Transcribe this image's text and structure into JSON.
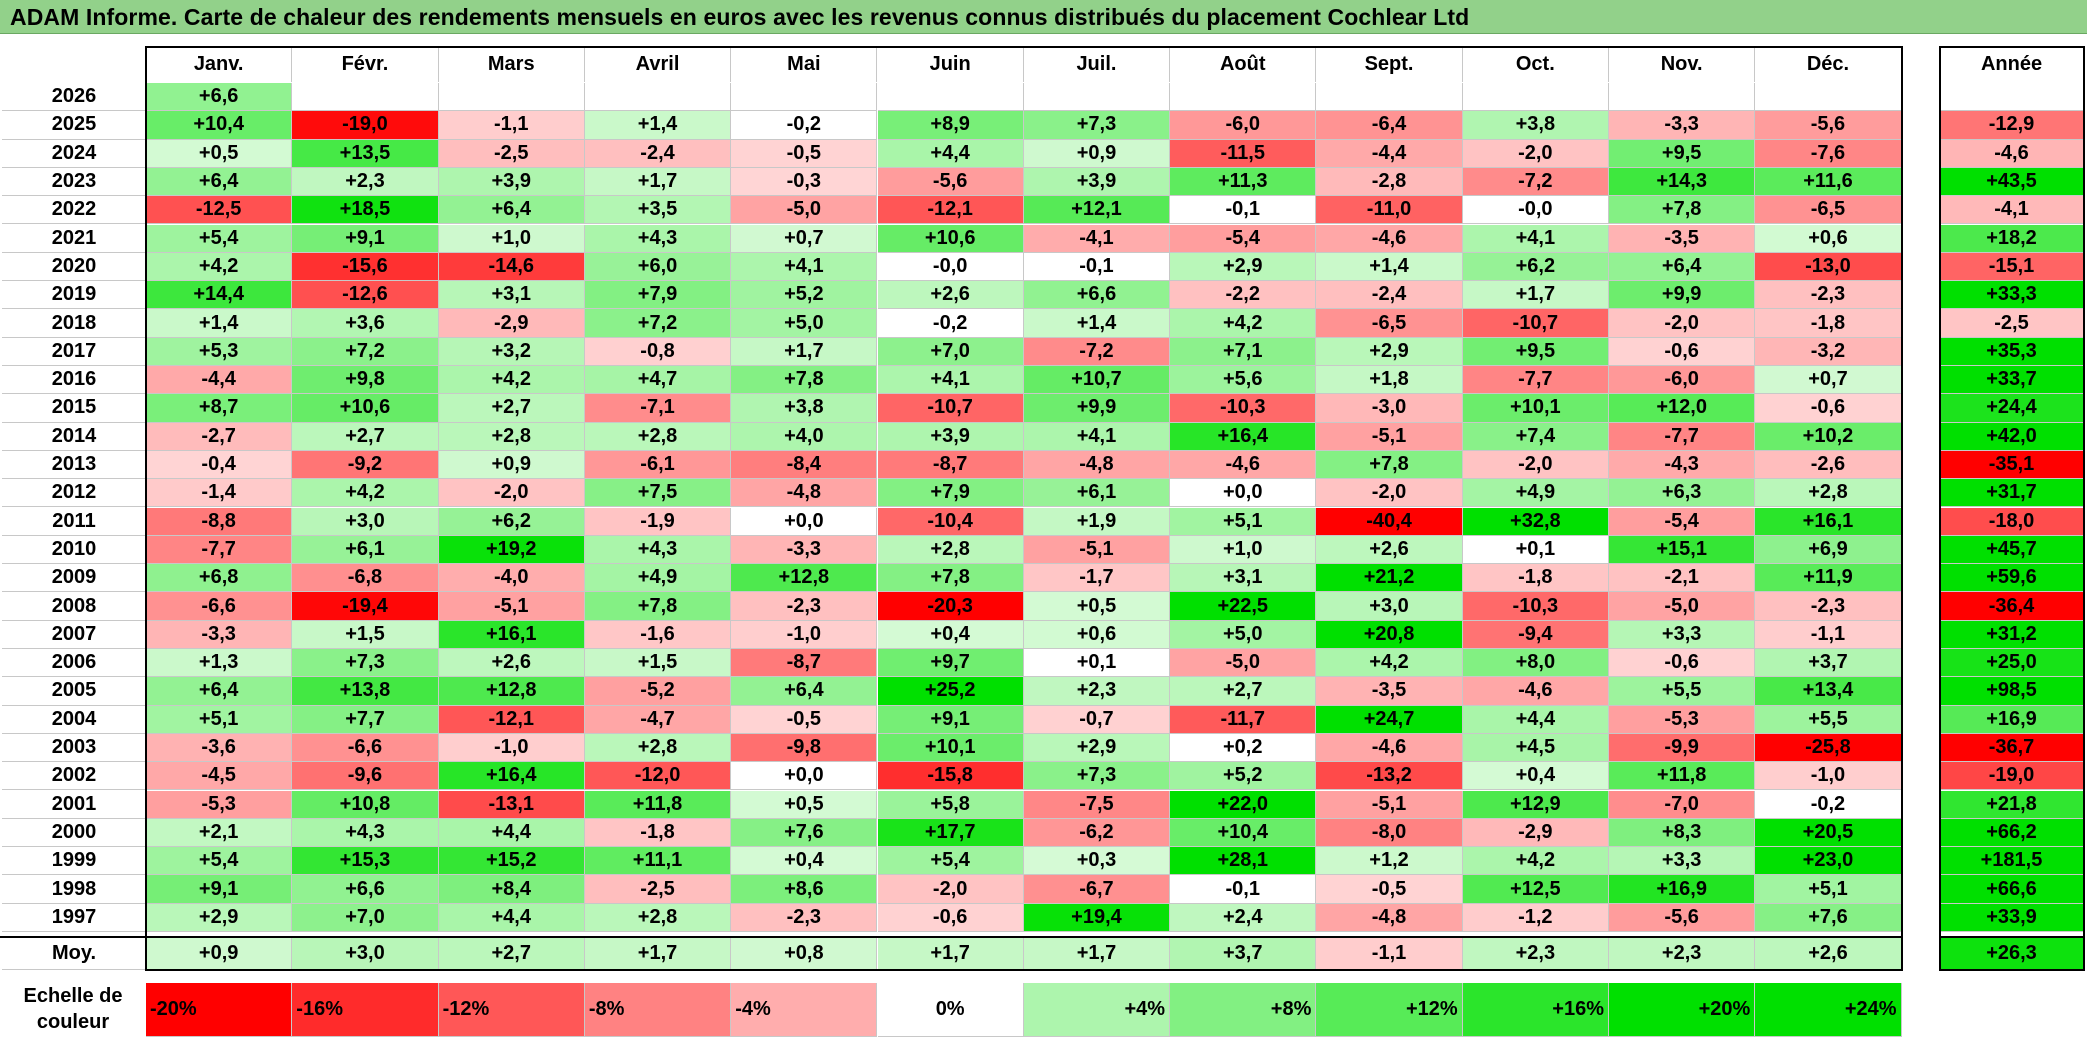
{
  "title": "ADAM Informe. Carte de chaleur des rendements mensuels en euros avec les revenus connus distribués du placement Cochlear Ltd",
  "chart_data": {
    "type": "heatmap",
    "months": [
      "Janv.",
      "Févr.",
      "Mars",
      "Avril",
      "Mai",
      "Juin",
      "Juil.",
      "Août",
      "Sept.",
      "Oct.",
      "Nov.",
      "Déc."
    ],
    "year_header": "Année",
    "rows": [
      {
        "year": "2026",
        "values": [
          "+6,6",
          "",
          "",
          "",
          "",
          "",
          "",
          "",
          "",
          "",
          "",
          ""
        ],
        "annual": ""
      },
      {
        "year": "2025",
        "values": [
          "+10,4",
          "-19,0",
          "-1,1",
          "+1,4",
          "-0,2",
          "+8,9",
          "+7,3",
          "-6,0",
          "-6,4",
          "+3,8",
          "-3,3",
          "-5,6"
        ],
        "annual": "-12,9"
      },
      {
        "year": "2024",
        "values": [
          "+0,5",
          "+13,5",
          "-2,5",
          "-2,4",
          "-0,5",
          "+4,4",
          "+0,9",
          "-11,5",
          "-4,4",
          "-2,0",
          "+9,5",
          "-7,6"
        ],
        "annual": "-4,6"
      },
      {
        "year": "2023",
        "values": [
          "+6,4",
          "+2,3",
          "+3,9",
          "+1,7",
          "-0,3",
          "-5,6",
          "+3,9",
          "+11,3",
          "-2,8",
          "-7,2",
          "+14,3",
          "+11,6"
        ],
        "annual": "+43,5"
      },
      {
        "year": "2022",
        "values": [
          "-12,5",
          "+18,5",
          "+6,4",
          "+3,5",
          "-5,0",
          "-12,1",
          "+12,1",
          "-0,1",
          "-11,0",
          "-0,0",
          "+7,8",
          "-6,5"
        ],
        "annual": "-4,1"
      },
      {
        "year": "2021",
        "values": [
          "+5,4",
          "+9,1",
          "+1,0",
          "+4,3",
          "+0,7",
          "+10,6",
          "-4,1",
          "-5,4",
          "-4,6",
          "+4,1",
          "-3,5",
          "+0,6"
        ],
        "annual": "+18,2"
      },
      {
        "year": "2020",
        "values": [
          "+4,2",
          "-15,6",
          "-14,6",
          "+6,0",
          "+4,1",
          "-0,0",
          "-0,1",
          "+2,9",
          "+1,4",
          "+6,2",
          "+6,4",
          "-13,0"
        ],
        "annual": "-15,1"
      },
      {
        "year": "2019",
        "values": [
          "+14,4",
          "-12,6",
          "+3,1",
          "+7,9",
          "+5,2",
          "+2,6",
          "+6,6",
          "-2,2",
          "-2,4",
          "+1,7",
          "+9,9",
          "-2,3"
        ],
        "annual": "+33,3"
      },
      {
        "year": "2018",
        "values": [
          "+1,4",
          "+3,6",
          "-2,9",
          "+7,2",
          "+5,0",
          "-0,2",
          "+1,4",
          "+4,2",
          "-6,5",
          "-10,7",
          "-2,0",
          "-1,8"
        ],
        "annual": "-2,5"
      },
      {
        "year": "2017",
        "values": [
          "+5,3",
          "+7,2",
          "+3,2",
          "-0,8",
          "+1,7",
          "+7,0",
          "-7,2",
          "+7,1",
          "+2,9",
          "+9,5",
          "-0,6",
          "-3,2"
        ],
        "annual": "+35,3"
      },
      {
        "year": "2016",
        "values": [
          "-4,4",
          "+9,8",
          "+4,2",
          "+4,7",
          "+7,8",
          "+4,1",
          "+10,7",
          "+5,6",
          "+1,8",
          "-7,7",
          "-6,0",
          "+0,7"
        ],
        "annual": "+33,7"
      },
      {
        "year": "2015",
        "values": [
          "+8,7",
          "+10,6",
          "+2,7",
          "-7,1",
          "+3,8",
          "-10,7",
          "+9,9",
          "-10,3",
          "-3,0",
          "+10,1",
          "+12,0",
          "-0,6"
        ],
        "annual": "+24,4"
      },
      {
        "year": "2014",
        "values": [
          "-2,7",
          "+2,7",
          "+2,8",
          "+2,8",
          "+4,0",
          "+3,9",
          "+4,1",
          "+16,4",
          "-5,1",
          "+7,4",
          "-7,7",
          "+10,2"
        ],
        "annual": "+42,0"
      },
      {
        "year": "2013",
        "values": [
          "-0,4",
          "-9,2",
          "+0,9",
          "-6,1",
          "-8,4",
          "-8,7",
          "-4,8",
          "-4,6",
          "+7,8",
          "-2,0",
          "-4,3",
          "-2,6"
        ],
        "annual": "-35,1"
      },
      {
        "year": "2012",
        "values": [
          "-1,4",
          "+4,2",
          "-2,0",
          "+7,5",
          "-4,8",
          "+7,9",
          "+6,1",
          "+0,0",
          "-2,0",
          "+4,9",
          "+6,3",
          "+2,8"
        ],
        "annual": "+31,7"
      },
      {
        "year": "2011",
        "values": [
          "-8,8",
          "+3,0",
          "+6,2",
          "-1,9",
          "+0,0",
          "-10,4",
          "+1,9",
          "+5,1",
          "-40,4",
          "+32,8",
          "-5,4",
          "+16,1"
        ],
        "annual": "-18,0"
      },
      {
        "year": "2010",
        "values": [
          "-7,7",
          "+6,1",
          "+19,2",
          "+4,3",
          "-3,3",
          "+2,8",
          "-5,1",
          "+1,0",
          "+2,6",
          "+0,1",
          "+15,1",
          "+6,9"
        ],
        "annual": "+45,7"
      },
      {
        "year": "2009",
        "values": [
          "+6,8",
          "-6,8",
          "-4,0",
          "+4,9",
          "+12,8",
          "+7,8",
          "-1,7",
          "+3,1",
          "+21,2",
          "-1,8",
          "-2,1",
          "+11,9"
        ],
        "annual": "+59,6"
      },
      {
        "year": "2008",
        "values": [
          "-6,6",
          "-19,4",
          "-5,1",
          "+7,8",
          "-2,3",
          "-20,3",
          "+0,5",
          "+22,5",
          "+3,0",
          "-10,3",
          "-5,0",
          "-2,3"
        ],
        "annual": "-36,4"
      },
      {
        "year": "2007",
        "values": [
          "-3,3",
          "+1,5",
          "+16,1",
          "-1,6",
          "-1,0",
          "+0,4",
          "+0,6",
          "+5,0",
          "+20,8",
          "-9,4",
          "+3,3",
          "-1,1"
        ],
        "annual": "+31,2"
      },
      {
        "year": "2006",
        "values": [
          "+1,3",
          "+7,3",
          "+2,6",
          "+1,5",
          "-8,7",
          "+9,7",
          "+0,1",
          "-5,0",
          "+4,2",
          "+8,0",
          "-0,6",
          "+3,7"
        ],
        "annual": "+25,0"
      },
      {
        "year": "2005",
        "values": [
          "+6,4",
          "+13,8",
          "+12,8",
          "-5,2",
          "+6,4",
          "+25,2",
          "+2,3",
          "+2,7",
          "-3,5",
          "-4,6",
          "+5,5",
          "+13,4"
        ],
        "annual": "+98,5"
      },
      {
        "year": "2004",
        "values": [
          "+5,1",
          "+7,7",
          "-12,1",
          "-4,7",
          "-0,5",
          "+9,1",
          "-0,7",
          "-11,7",
          "+24,7",
          "+4,4",
          "-5,3",
          "+5,5"
        ],
        "annual": "+16,9"
      },
      {
        "year": "2003",
        "values": [
          "-3,6",
          "-6,6",
          "-1,0",
          "+2,8",
          "-9,8",
          "+10,1",
          "+2,9",
          "+0,2",
          "-4,6",
          "+4,5",
          "-9,9",
          "-25,8"
        ],
        "annual": "-36,7"
      },
      {
        "year": "2002",
        "values": [
          "-4,5",
          "-9,6",
          "+16,4",
          "-12,0",
          "+0,0",
          "-15,8",
          "+7,3",
          "+5,2",
          "-13,2",
          "+0,4",
          "+11,8",
          "-1,0"
        ],
        "annual": "-19,0"
      },
      {
        "year": "2001",
        "values": [
          "-5,3",
          "+10,8",
          "-13,1",
          "+11,8",
          "+0,5",
          "+5,8",
          "-7,5",
          "+22,0",
          "-5,1",
          "+12,9",
          "-7,0",
          "-0,2"
        ],
        "annual": "+21,8"
      },
      {
        "year": "2000",
        "values": [
          "+2,1",
          "+4,3",
          "+4,4",
          "-1,8",
          "+7,6",
          "+17,7",
          "-6,2",
          "+10,4",
          "-8,0",
          "-2,9",
          "+8,3",
          "+20,5"
        ],
        "annual": "+66,2"
      },
      {
        "year": "1999",
        "values": [
          "+5,4",
          "+15,3",
          "+15,2",
          "+11,1",
          "+0,4",
          "+5,4",
          "+0,3",
          "+28,1",
          "+1,2",
          "+4,2",
          "+3,3",
          "+23,0"
        ],
        "annual": "+181,5"
      },
      {
        "year": "1998",
        "values": [
          "+9,1",
          "+6,6",
          "+8,4",
          "-2,5",
          "+8,6",
          "-2,0",
          "-6,7",
          "-0,1",
          "-0,5",
          "+12,5",
          "+16,9",
          "+5,1"
        ],
        "annual": "+66,6"
      },
      {
        "year": "1997",
        "values": [
          "+2,9",
          "+7,0",
          "+4,4",
          "+2,8",
          "-2,3",
          "-0,6",
          "+19,4",
          "+2,4",
          "-4,8",
          "-1,2",
          "-5,6",
          "+7,6"
        ],
        "annual": "+33,9"
      }
    ],
    "average": {
      "label": "Moy.",
      "values": [
        "+0,9",
        "+3,0",
        "+2,7",
        "+1,7",
        "+0,8",
        "+1,7",
        "+1,7",
        "+3,7",
        "-1,1",
        "+2,3",
        "+2,3",
        "+2,6"
      ],
      "annual": "+26,3"
    },
    "color_scale": {
      "label": "Echelle de couleur",
      "stops": [
        "-20%",
        "-16%",
        "-12%",
        "-8%",
        "-4%",
        "0%",
        "+4%",
        "+8%",
        "+12%",
        "+16%",
        "+20%",
        "+24%"
      ],
      "values": [
        -20,
        -16,
        -12,
        -8,
        -4,
        0,
        4,
        8,
        12,
        16,
        20,
        24
      ],
      "colors": {
        "negative": "#ff0000",
        "neutral": "#ffffff",
        "positive": "#00e000"
      }
    }
  }
}
